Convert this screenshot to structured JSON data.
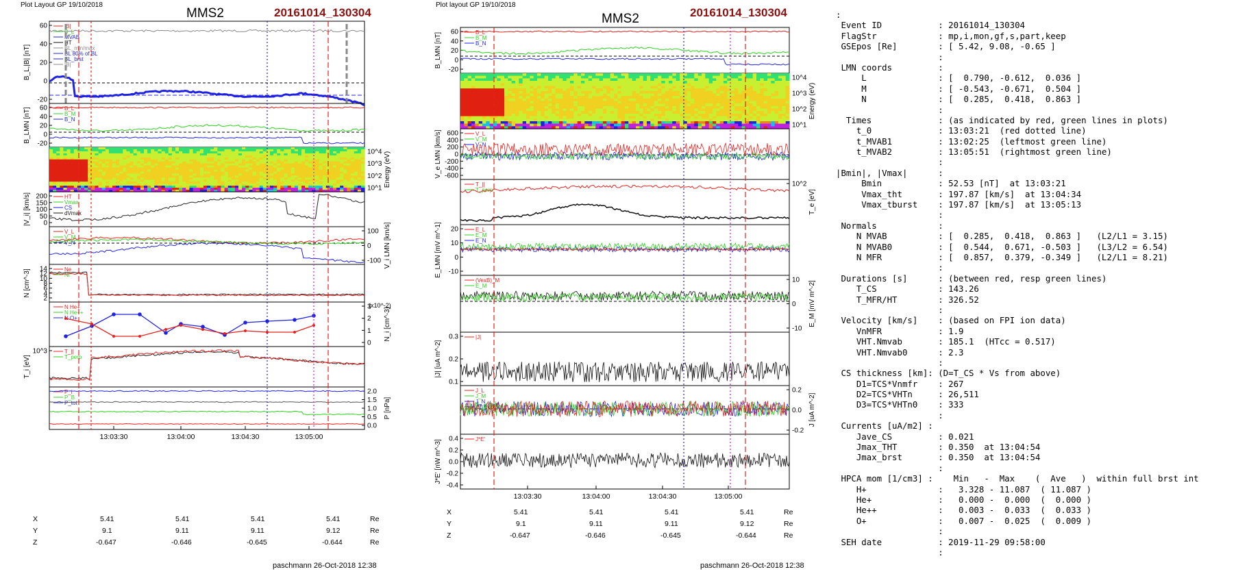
{
  "left_plot": {
    "header": "Plot Layout GP 19/10/2018",
    "spacecraft": "MMS2",
    "event": "20161014_130304",
    "footer": "paschmann 26-Oct-2018 12:38",
    "panels": [
      {
        "id": "b-mag",
        "ylabel": "B_L,|B| [nT]",
        "yticks": [
          "60",
          "40",
          "20",
          "0",
          "-20"
        ],
        "ylim": [
          -30,
          65
        ],
        "legend": [
          "|B|",
          "B_L",
          "MVAB",
          "HT",
          "BL_min/max",
          "BL 80% of BL",
          "BL_brst",
          "|B|"
        ]
      },
      {
        "id": "b-lmn",
        "ylabel": "B_LMN [nT]",
        "yticks": [
          "60",
          "40",
          "20",
          "0",
          "-20"
        ],
        "ylim": [
          -30,
          65
        ],
        "legend": [
          "B_L",
          "B_M",
          "B_N"
        ]
      },
      {
        "id": "ion-spec",
        "ylabel": "Energy (eV)",
        "yticks": [
          "10^4",
          "10^3",
          "10^2",
          "10^1"
        ]
      },
      {
        "id": "vi-mag",
        "ylabel": "|V_i| [km/s]",
        "yticks": [
          "200",
          "150",
          "100",
          "50",
          "0"
        ],
        "ylim": [
          0,
          200
        ],
        "legend": [
          "HT",
          "Vmax",
          "CS",
          "dVmax"
        ]
      },
      {
        "id": "vi-lmn",
        "ylabel": "V_i LMN [km/s]",
        "yticks": [
          "100",
          "0",
          "-100"
        ],
        "ylim": [
          -150,
          150
        ],
        "legend": [
          "V_L",
          "V_M",
          "V_N"
        ]
      },
      {
        "id": "density",
        "ylabel": "N [cm^-3]",
        "yticks": [
          "14",
          "12",
          "10",
          "8",
          "6",
          "4",
          "2"
        ],
        "ylim": [
          2,
          14
        ],
        "legend": [
          "Ne",
          "Ni"
        ]
      },
      {
        "id": "hpca",
        "ylabel": "N_i [cm^-3]",
        "yticks": [
          "3",
          "2",
          "1",
          "0"
        ],
        "ylim": [
          0,
          3
        ],
        "scale": "(x10^-2)",
        "legend": [
          "N He+",
          "N He++",
          "N O+"
        ]
      },
      {
        "id": "ti",
        "ylabel": "T_i [eV]",
        "yticks": [
          "10^3"
        ],
        "legend": [
          "T_||",
          "T_perp"
        ]
      },
      {
        "id": "pressure",
        "ylabel": "P [nPa]",
        "yticks": [
          "2.0",
          "1.5",
          "1.0",
          "0.5",
          "0.0"
        ],
        "ylim": [
          0,
          2.1
        ],
        "legend": [
          "P_i",
          "P_B",
          "P_tot"
        ]
      }
    ],
    "xticks": [
      "13:03:30",
      "13:04:00",
      "13:04:30",
      "13:05:00"
    ],
    "coords": {
      "rows": [
        {
          "label": "X",
          "values": [
            "5.41",
            "5.41",
            "5.41",
            "5.41"
          ],
          "unit": "Re"
        },
        {
          "label": "Y",
          "values": [
            "9.1",
            "9.11",
            "9.11",
            "9.12"
          ],
          "unit": "Re"
        },
        {
          "label": "Z",
          "values": [
            "-0.647",
            "-0.646",
            "-0.645",
            "-0.644"
          ],
          "unit": "Re"
        }
      ]
    }
  },
  "right_plot": {
    "header": "Plot layout GP 19/10/2018",
    "spacecraft": "MMS2",
    "event": "20161014_130304",
    "footer": "paschmann 26-Oct-2018 12:38",
    "panels": [
      {
        "id": "b-lmn",
        "ylabel": "B_LMN [nT]",
        "yticks": [
          "60",
          "40",
          "20",
          "0",
          "-20"
        ],
        "ylim": [
          -30,
          65
        ],
        "legend": [
          "B_L",
          "B_M",
          "B_N"
        ]
      },
      {
        "id": "elec-spec",
        "ylabel": "Energy (eV)",
        "yticks": [
          "10^4",
          "10^3",
          "10^2",
          "10^1"
        ]
      },
      {
        "id": "ve-lmn",
        "ylabel": "V_e LMN [km/s]",
        "yticks": [
          "600",
          "400",
          "200",
          "0",
          "-200",
          "-400",
          "-600"
        ],
        "ylim": [
          -650,
          650
        ],
        "legend": [
          "V_L",
          "V_M",
          "V_N"
        ]
      },
      {
        "id": "te",
        "ylabel": "T_e [eV]",
        "yticks": [
          "10^2"
        ],
        "legend": [
          "T_||",
          "T_perp"
        ]
      },
      {
        "id": "e-lmn",
        "ylabel": "E_LMN [mV m^-1]",
        "yticks": [
          "20",
          "10",
          "0",
          "-10"
        ],
        "ylim": [
          -15,
          25
        ],
        "legend": [
          "E_L",
          "E_M",
          "E_N"
        ]
      },
      {
        "id": "em",
        "ylabel": "E_M [mV m^-2]",
        "yticks": [
          "10",
          "0",
          "-10"
        ],
        "ylim": [
          -15,
          15
        ],
        "legend": [
          "(VexB)_M",
          "E_M"
        ]
      },
      {
        "id": "j-mag",
        "ylabel": "|J| [uA m^-2]",
        "yticks": [
          "0.3",
          "0.2",
          "0.1"
        ],
        "ylim": [
          0,
          0.35
        ],
        "legend": [
          "|J|"
        ]
      },
      {
        "id": "j-lmn",
        "ylabel": "J [uA m^-2]",
        "yticks": [
          "0.2",
          "0.0",
          "-0.2"
        ],
        "ylim": [
          -0.3,
          0.3
        ],
        "legend": [
          "J_L",
          "J_M",
          "J_N",
          "|J|_max"
        ]
      },
      {
        "id": "je",
        "ylabel": "J*E' [nW m^-3]",
        "yticks": [
          "0.4",
          "0.2",
          "0.0",
          "-0.2",
          "-0.4"
        ],
        "ylim": [
          -0.45,
          0.5
        ],
        "legend": [
          "J*E'"
        ]
      }
    ],
    "xticks": [
      "13:03:30",
      "13:04:00",
      "13:04:30",
      "13:05:00"
    ],
    "coords": {
      "rows": [
        {
          "label": "X",
          "values": [
            "5.41",
            "5.41",
            "5.41",
            "5.41"
          ],
          "unit": "Re"
        },
        {
          "label": "Y",
          "values": [
            "9.1",
            "9.11",
            "9.11",
            "9.12"
          ],
          "unit": "Re"
        },
        {
          "label": "Z",
          "values": [
            "-0.647",
            "-0.646",
            "-0.645",
            "-0.644"
          ],
          "unit": "Re"
        }
      ]
    }
  },
  "info_lines": [
    ":",
    " Event ID           : 20161014_130304",
    " FlagStr            : mp,i,mon,gf,s,part,keep",
    " GSEpos [Re]        : [ 5.42, 9.08, -0.65 ]",
    "                    :",
    " LMN coords         :",
    "     L              : [  0.790, -0.612,  0.036 ]",
    "     M              : [ -0.543, -0.671,  0.504 ]",
    "     N              : [  0.285,  0.418,  0.863 ]",
    "                    :",
    "  Times             : (as indicated by red, green lines in plots)",
    "    t_0             : 13:03:21  (red dotted line)",
    "    t_MVAB1         : 13:02:25  (leftmost green line)",
    "    t_MVAB2         : 13:05:51  (rightmost green line)",
    "                    :",
    "|Bmin|, |Vmax|      :",
    "     Bmin           : 52.53 [nT]  at 13:03:21",
    "     Vmax_tht       : 197.87 [km/s]  at 13:04:34",
    "     Vmax_tburst    : 197.87 [km/s]  at 13:05:13",
    "                    :",
    " Normals            :",
    "    N MVAB          : [  0.285,  0.418,  0.863 ]   (L2/L1 = 3.15)",
    "    N MVAB0         : [  0.544,  0.671, -0.503 ]   (L3/L2 = 6.54)",
    "    N MFR           : [  0.857,  0.379, -0.349 ]   (L2/L1 = 8.21)",
    "                    :",
    " Durations [s]      : (between red, resp green lines)",
    "    T_CS            : 143.26",
    "    T_MFR/HT        : 326.52",
    "                    :",
    " Velocity [km/s]    : (based on FPI ion data)",
    "    VnMFR           : 1.9",
    "    VHT.Nmvab       : 185.1  (HTcc = 0.517)",
    "    VHT.Nmvab0      : 2.3",
    "                    :",
    " CS thickness [km]: (D=T_CS * Vs from above)",
    "    D1=TCS*Vnmfr    : 267",
    "    D2=TCS*VHTn     : 26,511",
    "    D3=TCS*VHTn0    : 333",
    "                    :",
    " Currents [uA/m2] :",
    "    Jave_CS         : 0.021",
    "    Jmax_THT        : 0.350  at 13:04:54",
    "    Jmax_brst       : 0.350  at 13:04:54",
    "                    :",
    " HPCA mom [1/cm3] :    Min   -  Max    (  Ave   )  within full brst int",
    "    H+              :   3.328 - 11.087  ( 11.087 )",
    "    He+             :   0.000 -  0.000  (  0.000 )",
    "    He++            :   0.003 -  0.033  (  0.033 )",
    "    O+              :   0.007 -  0.025  (  0.009 )",
    "                    :",
    " SEH date           : 2019-11-29 09:58:00",
    "                    :"
  ],
  "colors": {
    "red": "#e8201c",
    "green": "#2bd21b",
    "blue": "#1f22e0",
    "black": "#111111",
    "gray": "#888888",
    "magenta": "#d21bd2",
    "title_red": "#8b1010"
  },
  "chart_data": [
    {
      "type": "line",
      "title": "MMS2 20161014_130304 (left)",
      "xlabel": "",
      "x": [
        "13:03:30",
        "13:04:00",
        "13:04:30",
        "13:05:00"
      ],
      "series": [
        {
          "name": "B_L",
          "values": [
            -10,
            -11,
            -12,
            -18
          ]
        },
        {
          "name": "|B|",
          "values": [
            56,
            56,
            56,
            56
          ]
        }
      ]
    },
    {
      "type": "line",
      "title": "MMS2 20161014_130304 (right)",
      "xlabel": "",
      "x": [
        "13:03:30",
        "13:04:00",
        "13:04:30",
        "13:05:00"
      ],
      "series": [
        {
          "name": "|J|",
          "values": [
            0.1,
            0.1,
            0.12,
            0.15
          ]
        }
      ]
    }
  ]
}
